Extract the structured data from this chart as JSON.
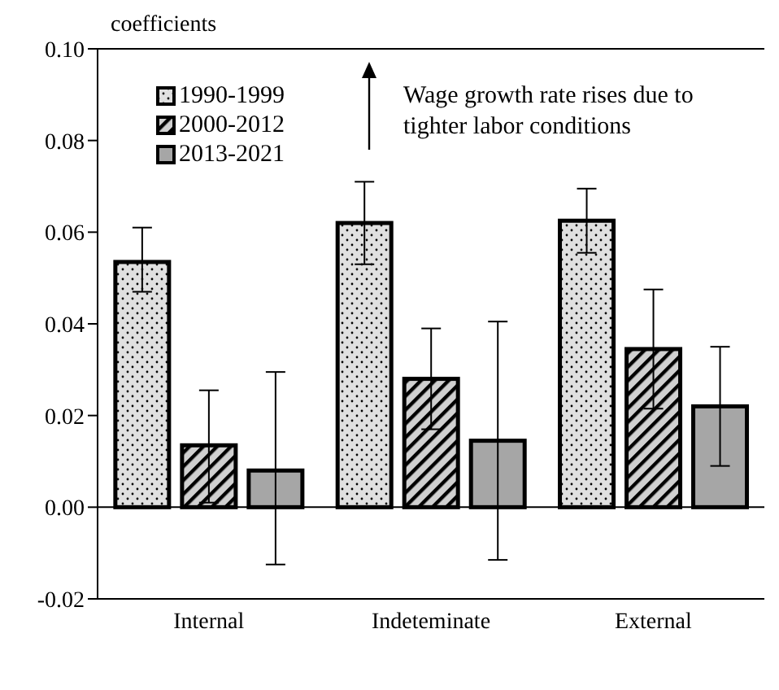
{
  "chart_data": {
    "type": "bar",
    "ylabel": "coefficients",
    "categories": [
      "Internal",
      "Indeteminate",
      "External"
    ],
    "series": [
      {
        "name": "1990-1999",
        "color": "#e0e0e0",
        "values": [
          0.0535,
          0.062,
          0.0625
        ],
        "errors": [
          [
            0.047,
            0.061
          ],
          [
            0.053,
            0.071
          ],
          [
            0.0555,
            0.0695
          ]
        ]
      },
      {
        "name": "2000-2012",
        "color": "#d0d0d0",
        "values": [
          0.0135,
          0.028,
          0.0345
        ],
        "errors": [
          [
            0.001,
            0.0255
          ],
          [
            0.017,
            0.039
          ],
          [
            0.0215,
            0.0475
          ]
        ]
      },
      {
        "name": "2013-2021",
        "color": "#a6a6a6",
        "values": [
          0.008,
          0.0145,
          0.022
        ],
        "errors": [
          [
            -0.0125,
            0.0295
          ],
          [
            -0.0115,
            0.0405
          ],
          [
            0.009,
            0.035
          ]
        ]
      }
    ],
    "ylim": [
      -0.02,
      0.1
    ],
    "yticks": [
      {
        "value": -0.02,
        "label": "-0.02"
      },
      {
        "value": 0,
        "label": "0.00"
      },
      {
        "value": 0.02,
        "label": "0.02"
      },
      {
        "value": 0.04,
        "label": "0.04"
      },
      {
        "value": 0.06,
        "label": "0.06"
      },
      {
        "value": 0.08,
        "label": "0.08"
      },
      {
        "value": 0.1,
        "label": "0.10"
      }
    ],
    "ref_lines": [
      {
        "axis": "y",
        "value": 0,
        "color": "#000000"
      }
    ],
    "annotations": [
      "Wage growth rate rises due to tighter labor conditions"
    ],
    "legend": "top left",
    "grid": false
  }
}
